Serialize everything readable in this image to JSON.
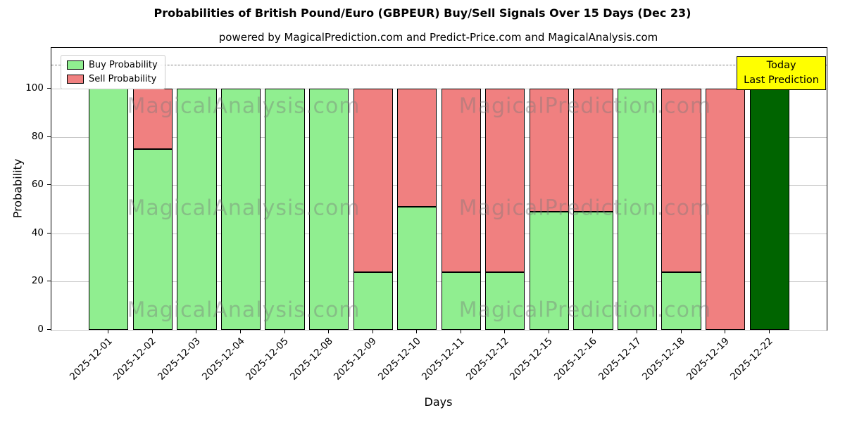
{
  "title": "Probabilities of British Pound/Euro (GBPEUR) Buy/Sell Signals Over 15 Days (Dec 23)",
  "subtitle": "powered by MagicalPrediction.com and Predict-Price.com and MagicalAnalysis.com",
  "axes": {
    "xlabel": "Days",
    "ylabel": "Probability",
    "yticks": [
      0,
      20,
      40,
      60,
      80,
      100
    ],
    "dashed_line_y": 110
  },
  "legend": {
    "items": [
      {
        "label": "Buy Probability",
        "color": "#90ee90"
      },
      {
        "label": "Sell Probability",
        "color": "#f08080"
      }
    ]
  },
  "annotation": {
    "line1": "Today",
    "line2": "Last Prediction",
    "bg_color": "#ffff00"
  },
  "watermarks": [
    "MagicalAnalysis.com",
    "MagicalPrediction.com"
  ],
  "colors": {
    "buy": "#90ee90",
    "sell": "#f08080",
    "today": "#006400",
    "edge": "#000000",
    "grid": "#c9c9c9",
    "dashed": "#7f7f7f"
  },
  "chart_data": {
    "type": "bar",
    "stacked": true,
    "title": "Probabilities of British Pound/Euro (GBPEUR) Buy/Sell Signals Over 15 Days (Dec 23)",
    "xlabel": "Days",
    "ylabel": "Probability",
    "ylim": [
      0,
      117
    ],
    "grid": true,
    "legend_position": "upper left",
    "dashed_line_y": 110,
    "categories": [
      "2025-12-01",
      "2025-12-02",
      "2025-12-03",
      "2025-12-04",
      "2025-12-05",
      "2025-12-08",
      "2025-12-09",
      "2025-12-10",
      "2025-12-11",
      "2025-12-12",
      "2025-12-15",
      "2025-12-16",
      "2025-12-17",
      "2025-12-18",
      "2025-12-19",
      "2025-12-22"
    ],
    "series": [
      {
        "name": "Buy Probability",
        "color": "#90ee90",
        "values": [
          100,
          75,
          100,
          100,
          100,
          100,
          24,
          51,
          24,
          24,
          49,
          49,
          100,
          24,
          0,
          100
        ]
      },
      {
        "name": "Sell Probability",
        "color": "#f08080",
        "values": [
          0,
          25,
          0,
          0,
          0,
          0,
          76,
          49,
          76,
          76,
          51,
          51,
          0,
          76,
          100,
          0
        ]
      }
    ],
    "today_index": 15,
    "today_color": "#006400"
  }
}
